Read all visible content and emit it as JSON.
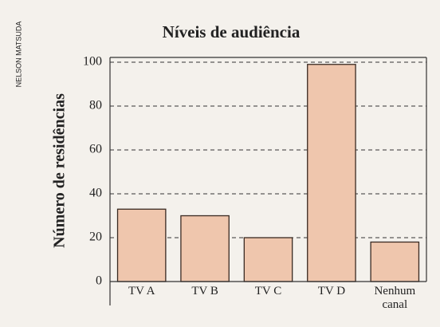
{
  "credit": "NELSON MATSUDA",
  "chart_data": {
    "type": "bar",
    "title": "Níveis de audiência",
    "y_label": "Número de residências",
    "categories": [
      "TV A",
      "TV B",
      "TV C",
      "TV D",
      "Nenhum canal"
    ],
    "values": [
      33,
      30,
      20,
      99,
      18
    ],
    "color": "#efc6ad",
    "ylim": [
      0,
      100
    ],
    "yticks": [
      0,
      20,
      40,
      60,
      80,
      100
    ],
    "grid": true
  }
}
